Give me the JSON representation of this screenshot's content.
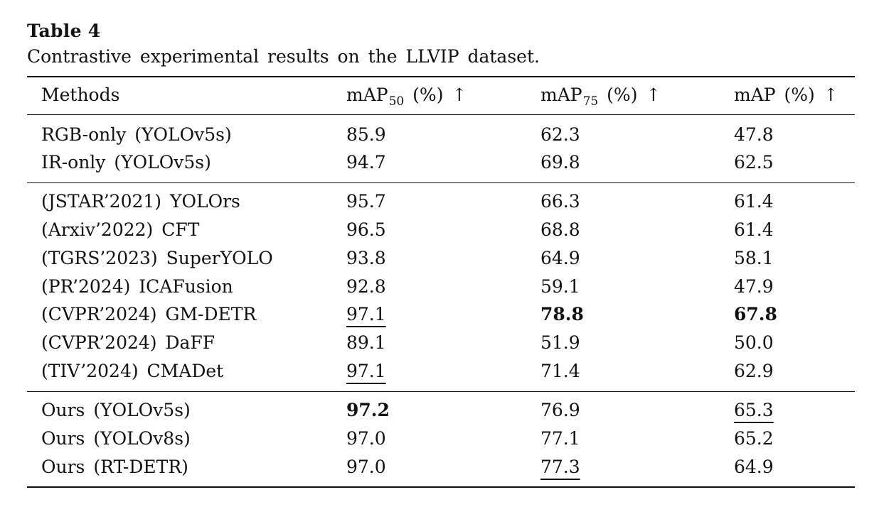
{
  "caption": {
    "title": "Table 4",
    "text": "Contrastive experimental results on the LLVIP dataset."
  },
  "header": {
    "methods": "Methods",
    "map50_main": "mAP",
    "map50_sub": "50",
    "map50_unit": " (%) ↑",
    "map75_main": "mAP",
    "map75_sub": "75",
    "map75_unit": " (%) ↑",
    "map": "mAP (%) ↑"
  },
  "groups": [
    [
      {
        "method": "RGB-only (YOLOv5s)",
        "map50": "85.9",
        "map75": "62.3",
        "map": "47.8"
      },
      {
        "method": "IR-only (YOLOv5s)",
        "map50": "94.7",
        "map75": "69.8",
        "map": "62.5"
      }
    ],
    [
      {
        "method": "(JSTAR’2021) YOLOrs",
        "map50": "95.7",
        "map75": "66.3",
        "map": "61.4"
      },
      {
        "method": "(Arxiv’2022) CFT",
        "map50": "96.5",
        "map75": "68.8",
        "map": "61.4"
      },
      {
        "method": "(TGRS’2023) SuperYOLO",
        "map50": "93.8",
        "map75": "64.9",
        "map": "58.1"
      },
      {
        "method": "(PR’2024) ICAFusion",
        "map50": "92.8",
        "map75": "59.1",
        "map": "47.9"
      },
      {
        "method": "(CVPR’2024) GM-DETR",
        "map50": "97.1",
        "map75": "78.8",
        "map": "67.8"
      },
      {
        "method": "(CVPR’2024) DaFF",
        "map50": "89.1",
        "map75": "51.9",
        "map": "50.0"
      },
      {
        "method": "(TIV’2024) CMADet",
        "map50": "97.1",
        "map75": "71.4",
        "map": "62.9"
      }
    ],
    [
      {
        "method": "Ours (YOLOv5s)",
        "map50": "97.2",
        "map75": "76.9",
        "map": "65.3"
      },
      {
        "method": "Ours (YOLOv8s)",
        "map50": "97.0",
        "map75": "77.1",
        "map": "65.2"
      },
      {
        "method": "Ours (RT-DETR)",
        "map50": "97.0",
        "map75": "77.3",
        "map": "64.9"
      }
    ]
  ]
}
